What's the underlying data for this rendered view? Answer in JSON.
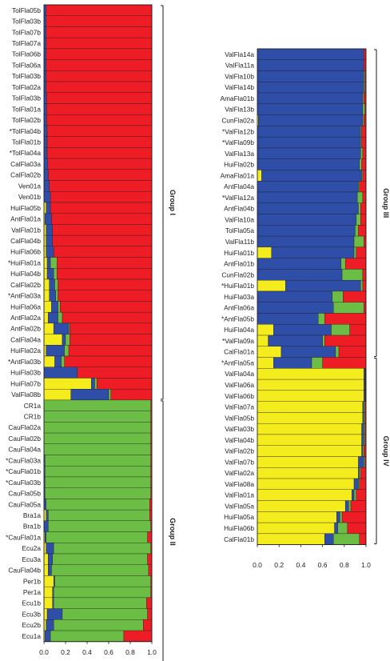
{
  "colors": {
    "cluster1": "#ee1c24",
    "cluster2": "#6cbd45",
    "cluster3": "#2e4ea8",
    "cluster4": "#f4ec1c"
  },
  "chart_data": [
    {
      "type": "stacked-bar-horizontal",
      "xlim": [
        0,
        1
      ],
      "x_ticks": [
        "0.0",
        "0.2",
        "0.4",
        "0.6",
        "0.8",
        "1.0"
      ],
      "series_order": [
        "cluster4",
        "cluster3",
        "cluster2",
        "cluster1"
      ],
      "groups": [
        {
          "label": "Group I",
          "start": 0,
          "end": 35
        },
        {
          "label": "Group II",
          "start": 36,
          "end": 59
        }
      ],
      "samples": [
        {
          "label": "TolFla05b",
          "values": [
            0,
            0.02,
            0,
            0.98
          ]
        },
        {
          "label": "TolFla03b",
          "values": [
            0,
            0.02,
            0,
            0.98
          ]
        },
        {
          "label": "TolFla07b",
          "values": [
            0,
            0.02,
            0,
            0.98
          ]
        },
        {
          "label": "TolFla07a",
          "values": [
            0,
            0.02,
            0,
            0.98
          ]
        },
        {
          "label": "TolFla06b",
          "values": [
            0,
            0.02,
            0,
            0.98
          ]
        },
        {
          "label": "TolFla06a",
          "values": [
            0,
            0.02,
            0,
            0.98
          ]
        },
        {
          "label": "TolFla03b",
          "values": [
            0,
            0.02,
            0,
            0.98
          ]
        },
        {
          "label": "TolFla02a",
          "values": [
            0,
            0.02,
            0,
            0.98
          ]
        },
        {
          "label": "TolFla03b",
          "values": [
            0,
            0.025,
            0,
            0.975
          ]
        },
        {
          "label": "TolFla01a",
          "values": [
            0,
            0.025,
            0,
            0.975
          ]
        },
        {
          "label": "TolFla02b",
          "values": [
            0,
            0.025,
            0,
            0.975
          ]
        },
        {
          "label": "*TolFla04b",
          "values": [
            0,
            0.03,
            0,
            0.97
          ]
        },
        {
          "label": "TolFla01b",
          "values": [
            0,
            0.03,
            0,
            0.97
          ]
        },
        {
          "label": "*TolFla04a",
          "values": [
            0,
            0.03,
            0,
            0.97
          ]
        },
        {
          "label": "CalFla03a",
          "values": [
            0,
            0.035,
            0,
            0.965
          ]
        },
        {
          "label": "CalFla02b",
          "values": [
            0,
            0.04,
            0,
            0.96
          ]
        },
        {
          "label": "Ven01a",
          "values": [
            0,
            0.05,
            0,
            0.95
          ]
        },
        {
          "label": "Ven01b",
          "values": [
            0,
            0.06,
            0,
            0.94
          ]
        },
        {
          "label": "HuiFla05b",
          "values": [
            0.02,
            0.04,
            0,
            0.94
          ]
        },
        {
          "label": "AntFla01a",
          "values": [
            0.01,
            0.06,
            0,
            0.93
          ]
        },
        {
          "label": "ValFla01b",
          "values": [
            0.02,
            0.06,
            0,
            0.92
          ]
        },
        {
          "label": "CalFla04b",
          "values": [
            0.02,
            0.06,
            0,
            0.92
          ]
        },
        {
          "label": "HuiFla06b",
          "values": [
            0.02,
            0.07,
            0,
            0.91
          ]
        },
        {
          "label": "*HuiFla01a",
          "values": [
            0.03,
            0.03,
            0.06,
            0.88
          ]
        },
        {
          "label": "HuiFla04b",
          "values": [
            0.03,
            0.06,
            0.03,
            0.88
          ]
        },
        {
          "label": "CalFla02b",
          "values": [
            0.05,
            0.05,
            0.03,
            0.87
          ]
        },
        {
          "label": "*AntFla03a",
          "values": [
            0.05,
            0.06,
            0.02,
            0.87
          ]
        },
        {
          "label": "HuiFla06a",
          "values": [
            0.07,
            0.06,
            0.02,
            0.85
          ]
        },
        {
          "label": "AntFla02a",
          "values": [
            0.04,
            0.09,
            0.04,
            0.83
          ]
        },
        {
          "label": "AntFla02b",
          "values": [
            0.09,
            0.14,
            0.01,
            0.76
          ]
        },
        {
          "label": "CalFla04a",
          "values": [
            0.17,
            0.03,
            0.04,
            0.76
          ]
        },
        {
          "label": "HuiFla02a",
          "values": [
            0.02,
            0.17,
            0.04,
            0.77
          ]
        },
        {
          "label": "*AntFla03b",
          "values": [
            0.1,
            0.06,
            0.03,
            0.81
          ]
        },
        {
          "label": "HuiFla03b",
          "values": [
            0,
            0.31,
            0,
            0.69
          ]
        },
        {
          "label": "HuiFla07b",
          "values": [
            0.44,
            0.03,
            0.02,
            0.51
          ]
        },
        {
          "label": "ValFla08b",
          "values": [
            0.25,
            0.35,
            0.02,
            0.38
          ]
        },
        {
          "label": "CR1a",
          "values": [
            0,
            0,
            0.99,
            0.01
          ]
        },
        {
          "label": "CR1b",
          "values": [
            0,
            0,
            0.99,
            0.01
          ]
        },
        {
          "label": "CauFla02a",
          "values": [
            0,
            0,
            0.99,
            0.01
          ]
        },
        {
          "label": "CauFla02b",
          "values": [
            0,
            0,
            0.99,
            0.01
          ]
        },
        {
          "label": "CauFla04a",
          "values": [
            0,
            0,
            0.99,
            0.01
          ]
        },
        {
          "label": "*CauFla03a",
          "values": [
            0,
            0.01,
            0.98,
            0.01
          ]
        },
        {
          "label": "*CauFla01b",
          "values": [
            0,
            0.01,
            0.98,
            0.01
          ]
        },
        {
          "label": "*CauFla03b",
          "values": [
            0,
            0.01,
            0.98,
            0.01
          ]
        },
        {
          "label": "CauFla05b",
          "values": [
            0,
            0.01,
            0.98,
            0.01
          ]
        },
        {
          "label": "CauFla05a",
          "values": [
            0,
            0.02,
            0.96,
            0.02
          ]
        },
        {
          "label": "Bra1a",
          "values": [
            0.02,
            0.02,
            0.94,
            0.02
          ]
        },
        {
          "label": "Bra1b",
          "values": [
            0,
            0.04,
            0.95,
            0.01
          ]
        },
        {
          "label": "*CauFla01a",
          "values": [
            0.01,
            0.01,
            0.94,
            0.04
          ]
        },
        {
          "label": "Ecu2a",
          "values": [
            0.02,
            0.07,
            0.9,
            0.01
          ]
        },
        {
          "label": "Ecu3a",
          "values": [
            0.04,
            0.04,
            0.88,
            0.04
          ]
        },
        {
          "label": "CauFla04b",
          "values": [
            0.04,
            0.03,
            0.9,
            0.03
          ]
        },
        {
          "label": "Per1b",
          "values": [
            0.09,
            0.01,
            0.89,
            0.01
          ]
        },
        {
          "label": "Per1a",
          "values": [
            0.08,
            0.01,
            0.9,
            0.01
          ]
        },
        {
          "label": "Ecu1b",
          "values": [
            0.08,
            0.01,
            0.86,
            0.05
          ]
        },
        {
          "label": "Ecu3b",
          "values": [
            0.03,
            0.14,
            0.79,
            0.04
          ]
        },
        {
          "label": "Ecu2b",
          "values": [
            0.02,
            0.07,
            0.83,
            0.08
          ]
        },
        {
          "label": "Ecu1a",
          "values": [
            0.01,
            0.05,
            0.68,
            0.26
          ]
        }
      ]
    },
    {
      "type": "stacked-bar-horizontal",
      "xlim": [
        0,
        1
      ],
      "x_ticks": [
        "0.0",
        "0.2",
        "0.4",
        "0.6",
        "0.8",
        "1.0"
      ],
      "series_order": [
        "cluster4",
        "cluster3",
        "cluster2",
        "cluster1"
      ],
      "groups": [
        {
          "label": "Group III",
          "start": 0,
          "end": 27
        },
        {
          "label": "Group IV",
          "start": 28,
          "end": 44
        }
      ],
      "samples": [
        {
          "label": "ValFla14a",
          "values": [
            0,
            0.98,
            0,
            0.02
          ]
        },
        {
          "label": "ValFla11a",
          "values": [
            0,
            0.98,
            0,
            0.02
          ]
        },
        {
          "label": "ValFla10b",
          "values": [
            0,
            0.98,
            0.01,
            0.01
          ]
        },
        {
          "label": "ValFla14b",
          "values": [
            0,
            0.98,
            0.01,
            0.01
          ]
        },
        {
          "label": "AmaFla01b",
          "values": [
            0,
            0.97,
            0.01,
            0.02
          ]
        },
        {
          "label": "ValFla13b",
          "values": [
            0,
            0.97,
            0.02,
            0.01
          ]
        },
        {
          "label": "CunFla02a",
          "values": [
            0.01,
            0.96,
            0.01,
            0.02
          ]
        },
        {
          "label": "*ValFla12b",
          "values": [
            0,
            0.95,
            0.01,
            0.04
          ]
        },
        {
          "label": "*ValFla09b",
          "values": [
            0,
            0.95,
            0.01,
            0.04
          ]
        },
        {
          "label": "ValFla13a",
          "values": [
            0,
            0.95,
            0.02,
            0.03
          ]
        },
        {
          "label": "HuiFla02b",
          "values": [
            0,
            0.94,
            0.02,
            0.04
          ]
        },
        {
          "label": "AmaFla01a",
          "values": [
            0.04,
            0.92,
            0.01,
            0.03
          ]
        },
        {
          "label": "AntFla04a",
          "values": [
            0,
            0.93,
            0.01,
            0.06
          ]
        },
        {
          "label": "*ValFla12a",
          "values": [
            0,
            0.92,
            0.05,
            0.03
          ]
        },
        {
          "label": "AntFla04b",
          "values": [
            0,
            0.93,
            0.02,
            0.05
          ]
        },
        {
          "label": "ValFla10a",
          "values": [
            0,
            0.91,
            0.04,
            0.05
          ]
        },
        {
          "label": "TolFla05a",
          "values": [
            0,
            0.9,
            0.03,
            0.07
          ]
        },
        {
          "label": "ValFla11b",
          "values": [
            0,
            0.89,
            0.09,
            0.02
          ]
        },
        {
          "label": "HuiFla01b",
          "values": [
            0.13,
            0.76,
            0.02,
            0.09
          ]
        },
        {
          "label": "AntFla01b",
          "values": [
            0,
            0.77,
            0.04,
            0.19
          ]
        },
        {
          "label": "CunFla02b",
          "values": [
            0,
            0.78,
            0.19,
            0.03
          ]
        },
        {
          "label": "*HuiFla01b",
          "values": [
            0.26,
            0.69,
            0.02,
            0.03
          ]
        },
        {
          "label": "HuiFla03a",
          "values": [
            0,
            0.69,
            0.1,
            0.21
          ]
        },
        {
          "label": "AntFla06a",
          "values": [
            0,
            0.7,
            0.28,
            0.02
          ]
        },
        {
          "label": "*AntFla05b",
          "values": [
            0,
            0.56,
            0.06,
            0.38
          ]
        },
        {
          "label": "HuiFla04a",
          "values": [
            0.15,
            0.53,
            0.17,
            0.15
          ]
        },
        {
          "label": "*ValFla09a",
          "values": [
            0.1,
            0.5,
            0.02,
            0.38
          ]
        },
        {
          "label": "CalFla01a",
          "values": [
            0.22,
            0.5,
            0.03,
            0.25
          ]
        },
        {
          "label": "*AntFla05a",
          "values": [
            0.15,
            0.35,
            0.1,
            0.4
          ]
        },
        {
          "label": "ValFla04a",
          "values": [
            0.98,
            0.01,
            0.005,
            0.005
          ]
        },
        {
          "label": "ValFla06a",
          "values": [
            0.98,
            0.01,
            0.005,
            0.005
          ]
        },
        {
          "label": "ValFla06b",
          "values": [
            0.98,
            0.01,
            0.005,
            0.005
          ]
        },
        {
          "label": "ValFla07a",
          "values": [
            0.97,
            0.01,
            0.01,
            0.01
          ]
        },
        {
          "label": "ValFla05b",
          "values": [
            0.97,
            0.01,
            0.01,
            0.01
          ]
        },
        {
          "label": "ValFla03b",
          "values": [
            0.96,
            0.02,
            0.01,
            0.01
          ]
        },
        {
          "label": "ValFla04b",
          "values": [
            0.96,
            0.02,
            0.01,
            0.01
          ]
        },
        {
          "label": "ValFla02b",
          "values": [
            0.96,
            0.01,
            0.01,
            0.02
          ]
        },
        {
          "label": "ValFla07b",
          "values": [
            0.93,
            0.05,
            0.01,
            0.01
          ]
        },
        {
          "label": "ValFla02a",
          "values": [
            0.93,
            0.01,
            0.01,
            0.05
          ]
        },
        {
          "label": "ValFla08a",
          "values": [
            0.89,
            0.04,
            0.01,
            0.06
          ]
        },
        {
          "label": "ValFla01a",
          "values": [
            0.87,
            0.02,
            0.02,
            0.09
          ]
        },
        {
          "label": "ValFla05a",
          "values": [
            0.81,
            0.03,
            0.02,
            0.14
          ]
        },
        {
          "label": "HuiFla05a",
          "values": [
            0.73,
            0.03,
            0.02,
            0.22
          ]
        },
        {
          "label": "HuiFla06b",
          "values": [
            0.71,
            0.03,
            0.09,
            0.17
          ]
        },
        {
          "label": "CalFla01b",
          "values": [
            0.62,
            0.08,
            0.24,
            0.06
          ]
        }
      ]
    }
  ]
}
